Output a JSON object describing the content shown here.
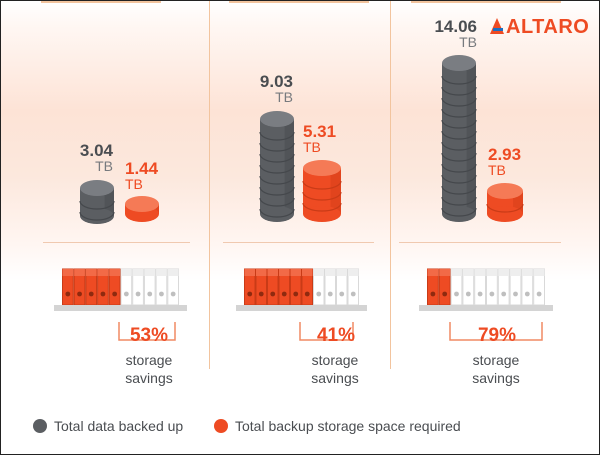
{
  "brand": {
    "logo_text": "ALTARO",
    "color_orange": "#ee4b23",
    "color_gray": "#5b5e62"
  },
  "panels": [
    {
      "total": {
        "value": "3.04",
        "unit": "TB"
      },
      "backup": {
        "value": "1.44",
        "unit": "TB"
      },
      "savings_percent": "53%",
      "savings_label": "storage\nsavings",
      "storage_used_fraction": 0.47
    },
    {
      "total": {
        "value": "9.03",
        "unit": "TB"
      },
      "backup": {
        "value": "5.31",
        "unit": "TB"
      },
      "savings_percent": "41%",
      "savings_label": "storage\nsavings",
      "storage_used_fraction": 0.59
    },
    {
      "total": {
        "value": "14.06",
        "unit": "TB"
      },
      "backup": {
        "value": "2.93",
        "unit": "TB"
      },
      "savings_percent": "79%",
      "savings_label": "storage\nsavings",
      "storage_used_fraction": 0.21
    }
  ],
  "legend": [
    {
      "label": "Total data backed up",
      "color": "#5b5e62",
      "icon": "gray-dot-icon"
    },
    {
      "label": "Total backup storage space required",
      "color": "#ee4b23",
      "icon": "orange-dot-icon"
    }
  ]
}
